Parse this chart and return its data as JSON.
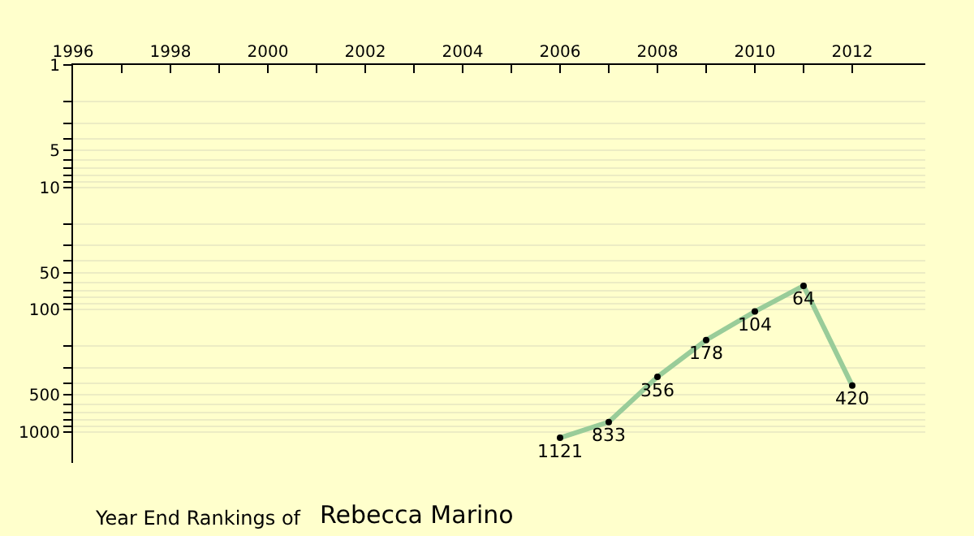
{
  "chart_data": {
    "type": "line",
    "title": "Year End Rankings of",
    "subtitle": "Rebecca Marino",
    "x": [
      2006,
      2007,
      2008,
      2009,
      2010,
      2011,
      2012
    ],
    "series": [
      {
        "color": "#99cc99",
        "values": [
          1121,
          833,
          356,
          178,
          104,
          64,
          420
        ]
      }
    ],
    "data_labels": true,
    "marker": "circle",
    "line_style": "solid",
    "log": "y",
    "grid": "y",
    "xlim": [
      1996,
      2013.5
    ],
    "xticks": [
      1996,
      {
        "value": 1997,
        "label": null
      },
      1998,
      {
        "value": 1999,
        "label": null
      },
      2000,
      {
        "value": 2001,
        "label": null
      },
      2002,
      {
        "value": 2003,
        "label": null
      },
      2004,
      {
        "value": 2005,
        "label": null
      },
      2006,
      {
        "value": 2007,
        "label": null
      },
      2008,
      {
        "value": 2009,
        "label": null
      },
      2010,
      {
        "value": 2011,
        "label": null
      },
      2012
    ],
    "ylim": [
      1800,
      1
    ],
    "yticks": [
      1,
      {
        "value": 2,
        "label": null
      },
      {
        "value": 3,
        "label": null
      },
      {
        "value": 4,
        "label": null
      },
      5,
      {
        "value": 6,
        "label": null
      },
      {
        "value": 7,
        "label": null
      },
      {
        "value": 8,
        "label": null
      },
      {
        "value": 9,
        "label": null
      },
      10,
      {
        "value": 20,
        "label": null
      },
      {
        "value": 30,
        "label": null
      },
      {
        "value": 40,
        "label": null
      },
      50,
      {
        "value": 60,
        "label": null
      },
      {
        "value": 70,
        "label": null
      },
      {
        "value": 80,
        "label": null
      },
      {
        "value": 90,
        "label": null
      },
      100,
      {
        "value": 200,
        "label": null
      },
      {
        "value": 300,
        "label": null
      },
      {
        "value": 400,
        "label": null
      },
      500,
      {
        "value": 600,
        "label": null
      },
      {
        "value": 700,
        "label": null
      },
      {
        "value": 800,
        "label": null
      },
      {
        "value": 900,
        "label": null
      },
      1000
    ]
  }
}
